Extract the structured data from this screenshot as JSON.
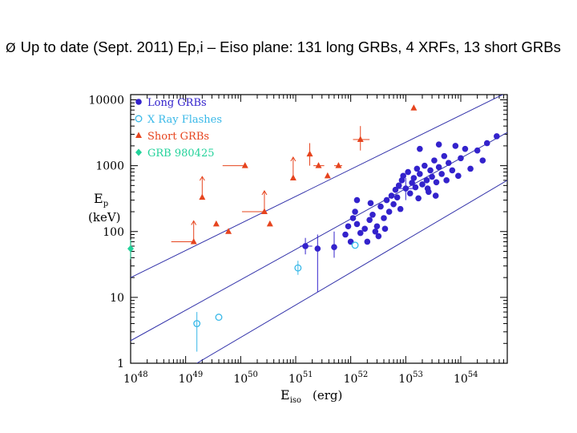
{
  "slide": {
    "bullet": "Ø",
    "text": "Up to date (Sept. 2011) Ep,i – Eiso plane: 131 long GRBs, 4 XRFs, 13 short GRBs"
  },
  "colors": {
    "long": "#3322cc",
    "xrf": "#38b8e8",
    "short": "#e6441e",
    "grb980425": "#22d29a",
    "fitline": "#3333aa",
    "axis": "#000000"
  },
  "chart_data": {
    "type": "scatter",
    "x_log": true,
    "y_log": true,
    "xlim": [
      1e+48,
      7e+54
    ],
    "ylim": [
      1,
      12000
    ],
    "x_ticks": [
      {
        "value": 1e+48,
        "label": "10",
        "exp": "48"
      },
      {
        "value": 1e+49,
        "label": "10",
        "exp": "49"
      },
      {
        "value": 1e+50,
        "label": "10",
        "exp": "50"
      },
      {
        "value": 1e+51,
        "label": "10",
        "exp": "51"
      },
      {
        "value": 1e+52,
        "label": "10",
        "exp": "52"
      },
      {
        "value": 1e+53,
        "label": "10",
        "exp": "53"
      },
      {
        "value": 1e+54,
        "label": "10",
        "exp": "54"
      }
    ],
    "y_ticks": [
      {
        "value": 1,
        "label": "1"
      },
      {
        "value": 10,
        "label": "10"
      },
      {
        "value": 100,
        "label": "100"
      },
      {
        "value": 1000,
        "label": "1000"
      },
      {
        "value": 10000,
        "label": "10000"
      }
    ],
    "xlabel": {
      "main": "E",
      "sub": "iso",
      "unit": "(erg)"
    },
    "ylabel": {
      "main": "E",
      "sub": "p",
      "unit": "(keV)"
    },
    "legend": [
      {
        "label": "Long GRBs",
        "key": "long"
      },
      {
        "label": "X Ray Flashes",
        "key": "xrf"
      },
      {
        "label": "Short GRBs",
        "key": "short"
      },
      {
        "label": "GRB 980425",
        "key": "grb980425"
      }
    ],
    "fit_lines": [
      {
        "x": [
          1e+48,
          7e+54
        ],
        "y": [
          20,
          13000
        ]
      },
      {
        "x": [
          1e+48,
          7e+54
        ],
        "y": [
          2.2,
          3200
        ]
      },
      {
        "x": [
          1.6e+49,
          7e+54
        ],
        "y": [
          1,
          600
        ]
      }
    ],
    "series": [
      {
        "name": "Long GRBs",
        "key": "long",
        "points": [
          {
            "x": 1.5e+51,
            "y": 60,
            "ylo": 45,
            "yhi": 80,
            "xlo": 1.2e+51,
            "xhi": 2e+51
          },
          {
            "x": 2.5e+51,
            "y": 55,
            "ylo": 12,
            "yhi": 90
          },
          {
            "x": 5e+51,
            "y": 58,
            "ylo": 40,
            "yhi": 100
          },
          {
            "x": 1e+52,
            "y": 70
          },
          {
            "x": 8e+51,
            "y": 90
          },
          {
            "x": 9e+51,
            "y": 120
          },
          {
            "x": 1.1e+52,
            "y": 160
          },
          {
            "x": 1.2e+52,
            "y": 200
          },
          {
            "x": 1.3e+52,
            "y": 130
          },
          {
            "x": 1.5e+52,
            "y": 95
          },
          {
            "x": 1.8e+52,
            "y": 110
          },
          {
            "x": 2e+52,
            "y": 70
          },
          {
            "x": 2.2e+52,
            "y": 150
          },
          {
            "x": 2.5e+52,
            "y": 180
          },
          {
            "x": 2.8e+52,
            "y": 100
          },
          {
            "x": 3e+52,
            "y": 120
          },
          {
            "x": 3.2e+52,
            "y": 85
          },
          {
            "x": 3.5e+52,
            "y": 240
          },
          {
            "x": 4e+52,
            "y": 160
          },
          {
            "x": 4.2e+52,
            "y": 110
          },
          {
            "x": 4.5e+52,
            "y": 300
          },
          {
            "x": 5e+52,
            "y": 200
          },
          {
            "x": 5.5e+52,
            "y": 350
          },
          {
            "x": 6e+52,
            "y": 260
          },
          {
            "x": 6.5e+52,
            "y": 430
          },
          {
            "x": 7e+52,
            "y": 330
          },
          {
            "x": 7.5e+52,
            "y": 500
          },
          {
            "x": 8e+52,
            "y": 220
          },
          {
            "x": 8.5e+52,
            "y": 600
          },
          {
            "x": 9e+52,
            "y": 700
          },
          {
            "x": 1e+53,
            "y": 450,
            "ylo": 300,
            "yhi": 650,
            "xlo": 7e+52,
            "xhi": 1.4e+53
          },
          {
            "x": 1.1e+53,
            "y": 800
          },
          {
            "x": 1.2e+53,
            "y": 380
          },
          {
            "x": 1.3e+53,
            "y": 550
          },
          {
            "x": 1.4e+53,
            "y": 650
          },
          {
            "x": 1.5e+53,
            "y": 470
          },
          {
            "x": 1.6e+53,
            "y": 900
          },
          {
            "x": 1.7e+53,
            "y": 320
          },
          {
            "x": 1.8e+53,
            "y": 750
          },
          {
            "x": 2e+53,
            "y": 520
          },
          {
            "x": 2.2e+53,
            "y": 1000
          },
          {
            "x": 2.4e+53,
            "y": 600
          },
          {
            "x": 2.6e+53,
            "y": 400
          },
          {
            "x": 2.8e+53,
            "y": 850
          },
          {
            "x": 3e+53,
            "y": 680
          },
          {
            "x": 3.3e+53,
            "y": 1200
          },
          {
            "x": 3.6e+53,
            "y": 560
          },
          {
            "x": 4e+53,
            "y": 950
          },
          {
            "x": 4.5e+53,
            "y": 750
          },
          {
            "x": 5e+53,
            "y": 1400
          },
          {
            "x": 5.5e+53,
            "y": 600
          },
          {
            "x": 6e+53,
            "y": 1100
          },
          {
            "x": 7e+53,
            "y": 850
          },
          {
            "x": 8e+53,
            "y": 2000
          },
          {
            "x": 9e+53,
            "y": 700
          },
          {
            "x": 1e+54,
            "y": 1300
          },
          {
            "x": 1.2e+54,
            "y": 1800
          },
          {
            "x": 1.5e+54,
            "y": 900
          },
          {
            "x": 2e+54,
            "y": 1700
          },
          {
            "x": 2.5e+54,
            "y": 1200
          },
          {
            "x": 3e+54,
            "y": 2200
          },
          {
            "x": 4.5e+54,
            "y": 2800
          },
          {
            "x": 1.8e+53,
            "y": 1800
          },
          {
            "x": 4e+53,
            "y": 2100
          },
          {
            "x": 2.5e+53,
            "y": 450
          },
          {
            "x": 3.5e+53,
            "y": 350
          },
          {
            "x": 1.3e+52,
            "y": 300
          },
          {
            "x": 2.3e+52,
            "y": 270
          }
        ]
      },
      {
        "name": "X Ray Flashes",
        "key": "xrf",
        "points": [
          {
            "x": 1.1e+51,
            "y": 28,
            "ylo": 22,
            "yhi": 36
          },
          {
            "x": 1.2e+52,
            "y": 62
          },
          {
            "x": 1.6e+49,
            "y": 4,
            "ylo": 1.5,
            "yhi": 6
          },
          {
            "x": 4e+49,
            "y": 5
          }
        ]
      },
      {
        "name": "Short GRBs",
        "key": "short",
        "points": [
          {
            "x": 1.4e+53,
            "y": 7500
          },
          {
            "x": 1.5e+52,
            "y": 2500,
            "ylo": 1700,
            "yhi": 4000,
            "xlo": 1.1e+52,
            "xhi": 2.2e+52
          },
          {
            "x": 1.8e+51,
            "y": 1500,
            "ylo": 1000,
            "yhi": 2200
          },
          {
            "x": 2.6e+51,
            "y": 1000,
            "xlo": 2.1e+51,
            "xhi": 3.3e+51
          },
          {
            "x": 3.8e+51,
            "y": 700
          },
          {
            "x": 6e+51,
            "y": 1000,
            "xlo": 5e+51,
            "xhi": 7e+51
          },
          {
            "x": 9e+50,
            "y": 650,
            "up": true
          },
          {
            "x": 1.2e+50,
            "y": 1000,
            "left": true
          },
          {
            "x": 2.7e+50,
            "y": 200,
            "up": true,
            "left": true
          },
          {
            "x": 3.4e+50,
            "y": 130
          },
          {
            "x": 6e+49,
            "y": 100
          },
          {
            "x": 1.4e+49,
            "y": 70,
            "up": true,
            "left": true
          },
          {
            "x": 2e+49,
            "y": 330,
            "up": true
          },
          {
            "x": 3.6e+49,
            "y": 130
          }
        ]
      },
      {
        "name": "GRB 980425",
        "key": "grb980425",
        "points": [
          {
            "x": 1e+48,
            "y": 55,
            "ylo": 38,
            "yhi": 75
          }
        ]
      }
    ]
  }
}
